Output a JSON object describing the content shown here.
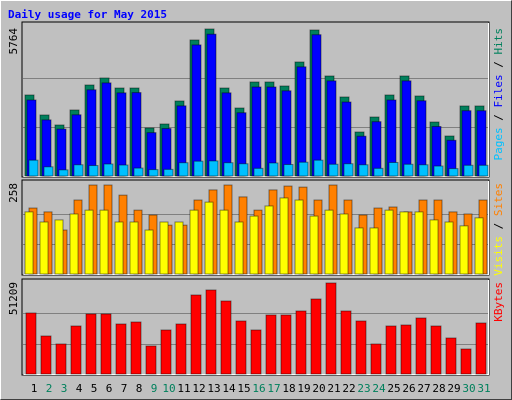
{
  "title": "Daily usage for May 2015",
  "separator": "/",
  "title_color": "#0000ff",
  "chart_data": [
    {
      "type": "bar",
      "categories": [
        "1",
        "2",
        "3",
        "4",
        "5",
        "6",
        "7",
        "8",
        "9",
        "10",
        "11",
        "12",
        "13",
        "14",
        "15",
        "16",
        "17",
        "18",
        "19",
        "20",
        "21",
        "22",
        "23",
        "24",
        "25",
        "26",
        "27",
        "28",
        "29",
        "30",
        "31"
      ],
      "category_colors": [
        "#000000",
        "#00805c",
        "#00805c",
        "#000000",
        "#000000",
        "#000000",
        "#000000",
        "#000000",
        "#00805c",
        "#00805c",
        "#000000",
        "#000000",
        "#000000",
        "#000000",
        "#000000",
        "#00805c",
        "#00805c",
        "#000000",
        "#000000",
        "#000000",
        "#000000",
        "#000000",
        "#00805c",
        "#00805c",
        "#000000",
        "#000000",
        "#000000",
        "#000000",
        "#000000",
        "#00805c",
        "#00805c"
      ],
      "ylim": [
        0,
        5764
      ],
      "yticks": [
        5764
      ],
      "gridlines": [
        1921.3,
        3842.7
      ],
      "series": [
        {
          "name": "Hits",
          "color": "#00805c",
          "values": [
            3176,
            2392,
            2000,
            2588,
            3568,
            3843,
            3450,
            3450,
            1882,
            2039,
            2941,
            5333,
            5764,
            3450,
            2666,
            3686,
            3686,
            3529,
            4470,
            5725,
            3921,
            3098,
            1725,
            2313,
            3176,
            3921,
            3137,
            2117,
            1568,
            2745,
            2745
          ]
        },
        {
          "name": "Files",
          "color": "#0000ff",
          "values": [
            2980,
            2200,
            1840,
            2400,
            3380,
            3650,
            3260,
            3270,
            1700,
            1860,
            2750,
            5140,
            5560,
            3260,
            2480,
            3490,
            3490,
            3340,
            4280,
            5540,
            3730,
            2900,
            1560,
            2130,
            2980,
            3730,
            2950,
            1940,
            1400,
            2560,
            2560
          ]
        },
        {
          "name": "Pages",
          "color": "#00c0ff",
          "values": [
            620,
            360,
            240,
            440,
            410,
            470,
            430,
            310,
            250,
            260,
            520,
            580,
            590,
            520,
            480,
            300,
            510,
            450,
            540,
            620,
            460,
            480,
            440,
            300,
            530,
            460,
            440,
            390,
            290,
            420,
            420
          ]
        }
      ]
    },
    {
      "type": "bar",
      "ylim": [
        0,
        258
      ],
      "yticks": [
        258
      ],
      "gridlines": [
        86,
        172
      ],
      "series": [
        {
          "name": "Sites",
          "color": "#ff8000",
          "values": [
            189,
            178,
            126,
            212,
            255,
            255,
            226,
            183,
            169,
            140,
            140,
            212,
            241,
            255,
            221,
            183,
            241,
            252,
            249,
            212,
            255,
            212,
            169,
            189,
            192,
            178,
            212,
            212,
            178,
            172,
            212
          ]
        },
        {
          "name": "Visits",
          "color": "#ffff00",
          "values": [
            178,
            149,
            155,
            172,
            183,
            183,
            149,
            149,
            126,
            149,
            149,
            183,
            206,
            183,
            149,
            166,
            195,
            218,
            212,
            166,
            183,
            172,
            132,
            132,
            183,
            178,
            178,
            155,
            149,
            138,
            161
          ]
        }
      ]
    },
    {
      "type": "bar",
      "ylim": [
        0,
        51209
      ],
      "yticks": [
        51209
      ],
      "gridlines": [
        17070,
        34139
      ],
      "series": [
        {
          "name": "KBytes",
          "color": "#ff0000",
          "values": [
            34326,
            21384,
            16882,
            27011,
            33764,
            33764,
            28137,
            29262,
            15757,
            24760,
            28137,
            44455,
            47269,
            41079,
            29825,
            24760,
            33201,
            33201,
            35452,
            42204,
            51209,
            35452,
            29825,
            16882,
            27011,
            27574,
            31513,
            27011,
            20258,
            14068,
            28699
          ]
        }
      ]
    }
  ]
}
